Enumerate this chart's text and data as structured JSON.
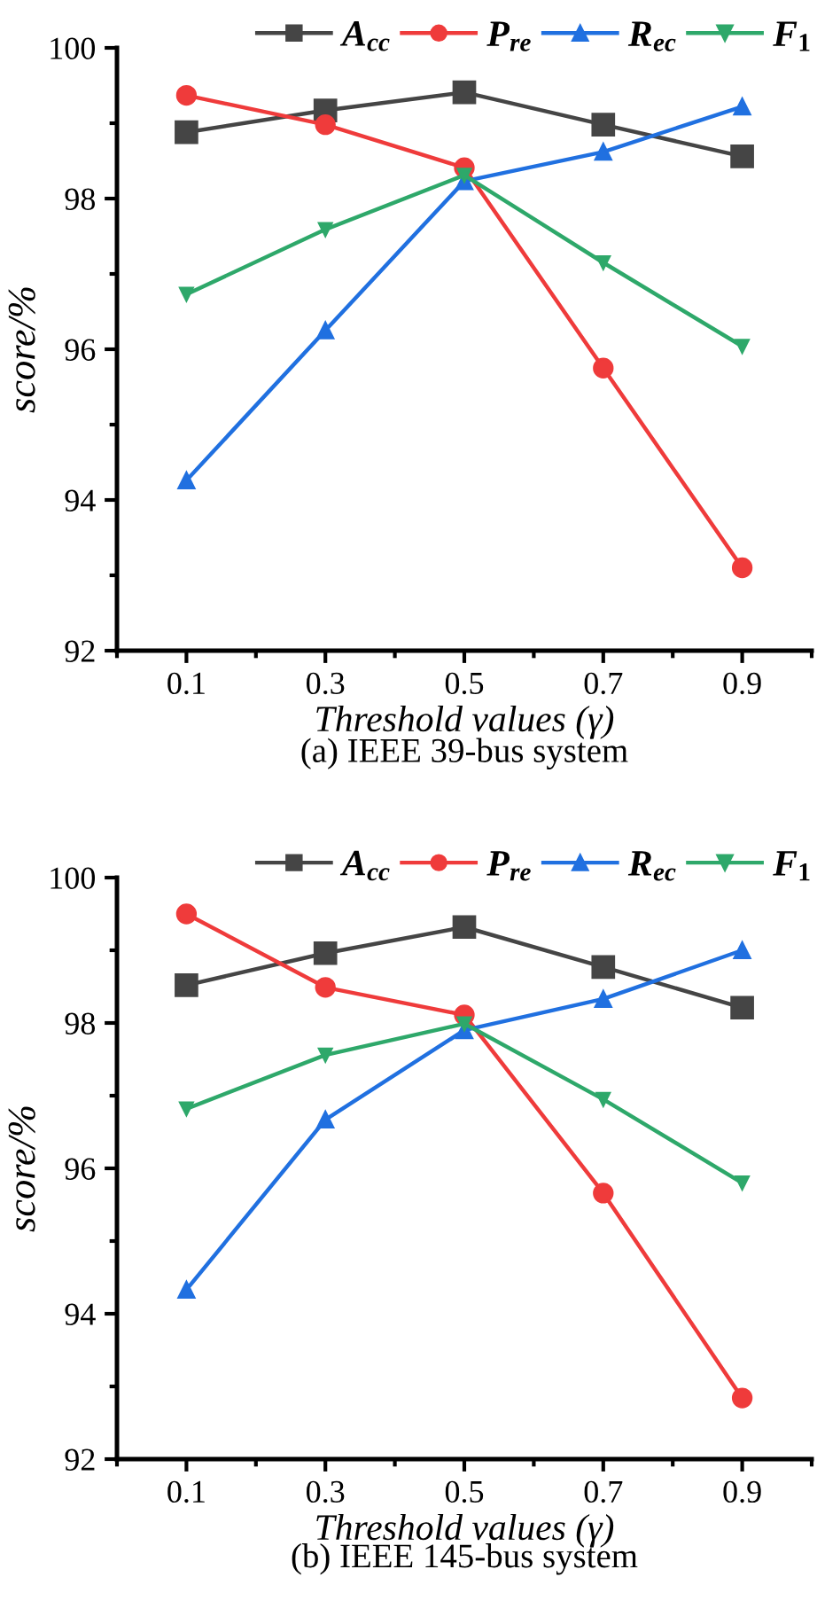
{
  "chart_data": [
    {
      "type": "line",
      "title": "(a) IEEE 39-bus system",
      "xlabel": "Threshold values (γ)",
      "ylabel": "score/%",
      "x": [
        0.1,
        0.3,
        0.5,
        0.7,
        0.9
      ],
      "xlim": [
        0,
        1
      ],
      "xticks": [
        0.1,
        0.3,
        0.5,
        0.7,
        0.9
      ],
      "ylim": [
        92,
        100
      ],
      "yticks": [
        92,
        94,
        96,
        98,
        100
      ],
      "legend": "top",
      "grid": false,
      "line_style": "solid",
      "series": [
        {
          "name": "A$_{cc}$",
          "color": "#454545",
          "marker": "square",
          "values": [
            98.88,
            99.17,
            99.41,
            98.98,
            98.56
          ]
        },
        {
          "name": "P$_{re}$",
          "color": "#ef3b3b",
          "marker": "circle",
          "values": [
            99.37,
            98.98,
            98.41,
            95.75,
            93.1
          ]
        },
        {
          "name": "R$_{ec}$",
          "color": "#2070e0",
          "marker": "triangle",
          "values": [
            94.26,
            96.25,
            98.23,
            98.62,
            99.22
          ]
        },
        {
          "name": "F$_{1}$",
          "color": "#2ea86a",
          "marker": "triangle_down",
          "values": [
            96.73,
            97.59,
            98.31,
            97.15,
            96.04
          ]
        }
      ]
    },
    {
      "type": "line",
      "title": "(b) IEEE 145-bus system",
      "xlabel": "Threshold values (γ)",
      "ylabel": "score/%",
      "x": [
        0.1,
        0.3,
        0.5,
        0.7,
        0.9
      ],
      "xlim": [
        0,
        1
      ],
      "xticks": [
        0.1,
        0.3,
        0.5,
        0.7,
        0.9
      ],
      "ylim": [
        92,
        100
      ],
      "yticks": [
        92,
        94,
        96,
        98,
        100
      ],
      "legend": "top",
      "grid": false,
      "line_style": "solid",
      "series": [
        {
          "name": "A$_{cc}$",
          "color": "#454545",
          "marker": "square",
          "values": [
            98.52,
            98.96,
            99.32,
            98.77,
            98.21
          ]
        },
        {
          "name": "P$_{re}$",
          "color": "#ef3b3b",
          "marker": "circle",
          "values": [
            99.5,
            98.49,
            98.11,
            95.66,
            92.84
          ]
        },
        {
          "name": "R$_{ec}$",
          "color": "#2070e0",
          "marker": "triangle",
          "values": [
            94.33,
            96.67,
            97.9,
            98.33,
            99.0
          ]
        },
        {
          "name": "F$_{1}$",
          "color": "#2ea86a",
          "marker": "triangle_down",
          "values": [
            96.82,
            97.56,
            97.99,
            96.95,
            95.8
          ]
        }
      ]
    }
  ]
}
